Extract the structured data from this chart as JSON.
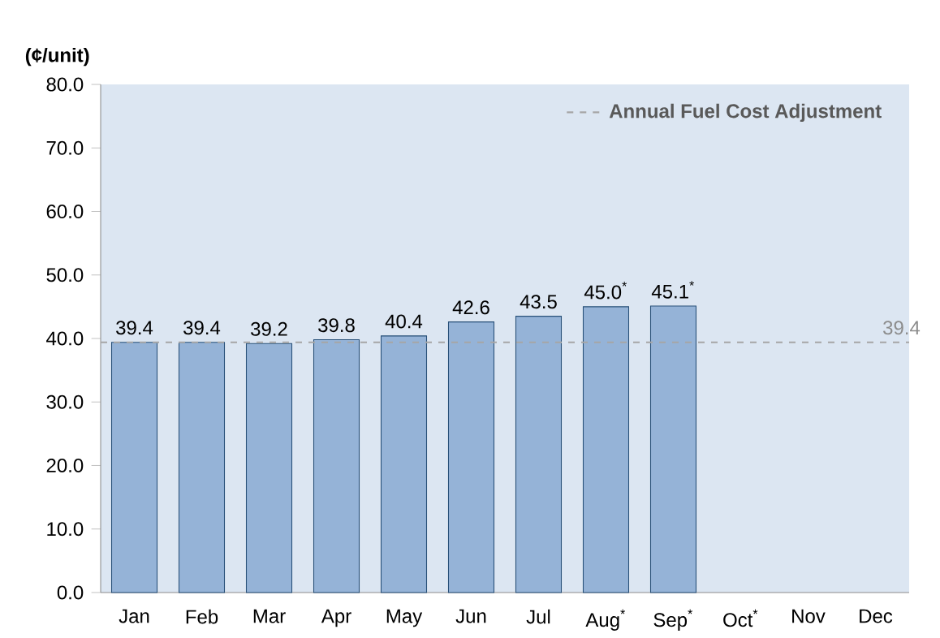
{
  "chart_data": {
    "type": "bar",
    "ylabel": "(¢/unit)",
    "categories": [
      "Jan",
      "Feb",
      "Mar",
      "Apr",
      "May",
      "Jun",
      "Jul",
      "Aug$^{*}$",
      "Sep$^{*}$",
      "Oct$^{*}$",
      "Nov",
      "Dec"
    ],
    "values": [
      39.4,
      39.4,
      39.2,
      39.8,
      40.4,
      42.6,
      43.5,
      45.0,
      45.1,
      null,
      null,
      null
    ],
    "value_labels": [
      "39.4",
      "39.4",
      "39.2",
      "39.8",
      "40.4",
      "42.6",
      "43.5",
      "45.0$^{*}$",
      "45.1$^{*}$",
      null,
      null,
      null
    ],
    "color": "#95b3d7",
    "ylim": [
      0,
      80
    ],
    "yticks": [
      {
        "value": 0,
        "label": "0.0"
      },
      {
        "value": 10,
        "label": "10.0"
      },
      {
        "value": 20,
        "label": "20.0"
      },
      {
        "value": 30,
        "label": "30.0"
      },
      {
        "value": 40,
        "label": "40.0"
      },
      {
        "value": 50,
        "label": "50.0"
      },
      {
        "value": 60,
        "label": "60.0"
      },
      {
        "value": 70,
        "label": "70.0"
      },
      {
        "value": 80,
        "label": "80.0"
      }
    ],
    "ref_lines": [
      {
        "axis": "y",
        "value": 39.4,
        "label": "Annual Fuel Cost Adjustment",
        "color": "#a6a6a6",
        "line_style": "dashed"
      }
    ],
    "annotations": [
      {
        "text": "39.4",
        "x": "Dec",
        "y": 39.4
      }
    ],
    "legend": "top right"
  }
}
